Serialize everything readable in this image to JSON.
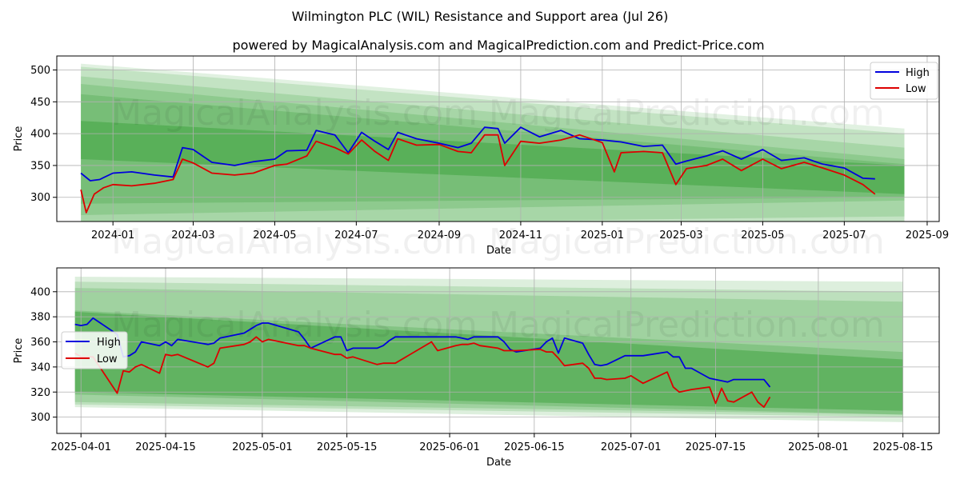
{
  "title": "Wilmington PLC (WIL) Resistance and Support area (Jul 26)",
  "subtitle": "powered by MagicalAnalysis.com and MagicalPrediction.com and Predict-Price.com",
  "watermark": "MagicalAnalysis.com    MagicalPrediction.com",
  "colors": {
    "high": "#0000dd",
    "low": "#dd0000",
    "band": "#2e9a2e"
  },
  "chart_data": [
    {
      "type": "line",
      "xlabel": "Date",
      "ylabel": "Price",
      "legend": "top-right",
      "grid": true,
      "xlim": [
        "2023-11-20",
        "2025-09-10"
      ],
      "ylim": [
        262,
        522
      ],
      "x_ticks": [
        "2024-01",
        "2024-03",
        "2024-05",
        "2024-07",
        "2024-09",
        "2024-11",
        "2025-01",
        "2025-03",
        "2025-05",
        "2025-07",
        "2025-09"
      ],
      "y_ticks": [
        300,
        350,
        400,
        450,
        500
      ],
      "series": [
        {
          "name": "High",
          "x": [
            "2023-12-08",
            "2023-12-15",
            "2023-12-22",
            "2024-01-01",
            "2024-01-15",
            "2024-02-01",
            "2024-02-15",
            "2024-02-22",
            "2024-03-01",
            "2024-03-15",
            "2024-04-01",
            "2024-04-15",
            "2024-05-01",
            "2024-05-10",
            "2024-05-25",
            "2024-06-01",
            "2024-06-15",
            "2024-06-25",
            "2024-07-05",
            "2024-07-15",
            "2024-07-25",
            "2024-08-01",
            "2024-08-15",
            "2024-09-01",
            "2024-09-15",
            "2024-09-25",
            "2024-10-05",
            "2024-10-15",
            "2024-10-20",
            "2024-11-01",
            "2024-11-15",
            "2024-12-01",
            "2024-12-15",
            "2025-01-01",
            "2025-01-15",
            "2025-02-01",
            "2025-02-15",
            "2025-02-25",
            "2025-03-05",
            "2025-03-20",
            "2025-04-01",
            "2025-04-15",
            "2025-05-01",
            "2025-05-15",
            "2025-06-01",
            "2025-06-15",
            "2025-07-01",
            "2025-07-15",
            "2025-07-24"
          ],
          "values": [
            338,
            326,
            328,
            338,
            340,
            335,
            332,
            378,
            375,
            355,
            350,
            356,
            360,
            373,
            374,
            405,
            398,
            370,
            402,
            388,
            375,
            402,
            392,
            385,
            378,
            385,
            410,
            408,
            385,
            410,
            395,
            405,
            392,
            390,
            387,
            380,
            382,
            352,
            357,
            365,
            373,
            360,
            375,
            358,
            362,
            352,
            346,
            330,
            329
          ]
        },
        {
          "name": "Low",
          "x": [
            "2023-12-08",
            "2023-12-12",
            "2023-12-18",
            "2023-12-25",
            "2024-01-01",
            "2024-01-15",
            "2024-02-01",
            "2024-02-15",
            "2024-02-22",
            "2024-03-01",
            "2024-03-15",
            "2024-04-01",
            "2024-04-15",
            "2024-05-01",
            "2024-05-10",
            "2024-05-25",
            "2024-06-01",
            "2024-06-15",
            "2024-06-25",
            "2024-07-05",
            "2024-07-15",
            "2024-07-25",
            "2024-08-01",
            "2024-08-15",
            "2024-09-01",
            "2024-09-15",
            "2024-09-25",
            "2024-10-05",
            "2024-10-15",
            "2024-10-20",
            "2024-11-01",
            "2024-11-15",
            "2024-12-01",
            "2024-12-15",
            "2025-01-01",
            "2025-01-10",
            "2025-01-15",
            "2025-02-01",
            "2025-02-15",
            "2025-02-25",
            "2025-03-05",
            "2025-03-20",
            "2025-04-01",
            "2025-04-15",
            "2025-05-01",
            "2025-05-15",
            "2025-06-01",
            "2025-06-15",
            "2025-07-01",
            "2025-07-15",
            "2025-07-24"
          ],
          "values": [
            312,
            276,
            305,
            315,
            320,
            318,
            322,
            328,
            360,
            354,
            338,
            335,
            338,
            350,
            352,
            365,
            388,
            378,
            368,
            390,
            372,
            358,
            392,
            382,
            383,
            372,
            370,
            398,
            398,
            350,
            388,
            385,
            390,
            398,
            386,
            340,
            370,
            372,
            370,
            320,
            345,
            350,
            360,
            342,
            360,
            345,
            355,
            346,
            335,
            320,
            305
          ]
        }
      ],
      "bands": [
        {
          "x": [
            "2023-12-08",
            "2025-08-15"
          ],
          "upper": [
            510,
            408
          ],
          "lower": [
            235,
            238
          ]
        },
        {
          "x": [
            "2023-12-08",
            "2025-08-15"
          ],
          "upper": [
            505,
            400
          ],
          "lower": [
            240,
            242
          ]
        },
        {
          "x": [
            "2023-12-08",
            "2025-08-15"
          ],
          "upper": [
            490,
            378
          ],
          "lower": [
            255,
            270
          ]
        },
        {
          "x": [
            "2023-12-08",
            "2025-08-15"
          ],
          "upper": [
            478,
            360
          ],
          "lower": [
            272,
            295
          ]
        },
        {
          "x": [
            "2023-12-08",
            "2025-08-15"
          ],
          "upper": [
            462,
            352
          ],
          "lower": [
            290,
            300
          ]
        },
        {
          "x": [
            "2023-12-08",
            "2025-08-15"
          ],
          "upper": [
            420,
            350
          ],
          "lower": [
            360,
            305
          ]
        }
      ]
    },
    {
      "type": "line",
      "xlabel": "Date",
      "ylabel": "Price",
      "legend": "center-left",
      "grid": true,
      "xlim": [
        "2025-03-28",
        "2025-08-21"
      ],
      "ylim": [
        287,
        419
      ],
      "x_ticks": [
        "2025-04-01",
        "2025-04-15",
        "2025-05-01",
        "2025-05-15",
        "2025-06-01",
        "2025-06-15",
        "2025-07-01",
        "2025-07-15",
        "2025-08-01",
        "2025-08-15"
      ],
      "y_ticks": [
        300,
        320,
        340,
        360,
        380,
        400
      ],
      "series": [
        {
          "name": "High",
          "x": [
            "2025-03-31",
            "2025-04-01",
            "2025-04-02",
            "2025-04-03",
            "2025-04-07",
            "2025-04-08",
            "2025-04-09",
            "2025-04-10",
            "2025-04-11",
            "2025-04-14",
            "2025-04-15",
            "2025-04-16",
            "2025-04-17",
            "2025-04-22",
            "2025-04-23",
            "2025-04-24",
            "2025-04-28",
            "2025-04-29",
            "2025-04-30",
            "2025-05-01",
            "2025-05-02",
            "2025-05-07",
            "2025-05-08",
            "2025-05-09",
            "2025-05-13",
            "2025-05-14",
            "2025-05-15",
            "2025-05-16",
            "2025-05-20",
            "2025-05-21",
            "2025-05-22",
            "2025-05-23",
            "2025-05-29",
            "2025-05-30",
            "2025-06-02",
            "2025-06-03",
            "2025-06-04",
            "2025-06-05",
            "2025-06-06",
            "2025-06-09",
            "2025-06-10",
            "2025-06-11",
            "2025-06-12",
            "2025-06-16",
            "2025-06-17",
            "2025-06-18",
            "2025-06-19",
            "2025-06-20",
            "2025-06-23",
            "2025-06-24",
            "2025-06-25",
            "2025-06-26",
            "2025-06-27",
            "2025-06-30",
            "2025-07-01",
            "2025-07-02",
            "2025-07-03",
            "2025-07-07",
            "2025-07-08",
            "2025-07-09",
            "2025-07-10",
            "2025-07-11",
            "2025-07-14",
            "2025-07-15",
            "2025-07-16",
            "2025-07-17",
            "2025-07-18",
            "2025-07-21",
            "2025-07-22",
            "2025-07-23",
            "2025-07-24"
          ],
          "values": [
            374,
            373,
            374,
            379,
            366,
            348,
            349,
            352,
            360,
            357,
            360,
            357,
            362,
            358,
            359,
            363,
            367,
            370,
            373,
            375,
            375,
            368,
            362,
            355,
            364,
            364,
            353,
            355,
            355,
            357,
            361,
            364,
            364,
            364,
            364,
            363,
            362,
            364,
            364,
            364,
            360,
            354,
            352,
            355,
            360,
            363,
            351,
            363,
            359,
            350,
            342,
            341,
            342,
            349,
            349,
            349,
            349,
            352,
            348,
            348,
            339,
            339,
            331,
            330,
            329,
            328,
            330,
            330,
            330,
            330,
            324
          ]
        },
        {
          "name": "Low",
          "x": [
            "2025-03-31",
            "2025-04-01",
            "2025-04-02",
            "2025-04-03",
            "2025-04-07",
            "2025-04-08",
            "2025-04-09",
            "2025-04-10",
            "2025-04-11",
            "2025-04-14",
            "2025-04-15",
            "2025-04-16",
            "2025-04-17",
            "2025-04-22",
            "2025-04-23",
            "2025-04-24",
            "2025-04-28",
            "2025-04-29",
            "2025-04-30",
            "2025-05-01",
            "2025-05-02",
            "2025-05-07",
            "2025-05-08",
            "2025-05-09",
            "2025-05-13",
            "2025-05-14",
            "2025-05-15",
            "2025-05-16",
            "2025-05-20",
            "2025-05-21",
            "2025-05-22",
            "2025-05-23",
            "2025-05-29",
            "2025-05-30",
            "2025-06-02",
            "2025-06-03",
            "2025-06-04",
            "2025-06-05",
            "2025-06-06",
            "2025-06-09",
            "2025-06-10",
            "2025-06-11",
            "2025-06-12",
            "2025-06-16",
            "2025-06-17",
            "2025-06-18",
            "2025-06-19",
            "2025-06-20",
            "2025-06-23",
            "2025-06-24",
            "2025-06-25",
            "2025-06-26",
            "2025-06-27",
            "2025-06-30",
            "2025-07-01",
            "2025-07-02",
            "2025-07-03",
            "2025-07-07",
            "2025-07-08",
            "2025-07-09",
            "2025-07-10",
            "2025-07-11",
            "2025-07-14",
            "2025-07-15",
            "2025-07-16",
            "2025-07-17",
            "2025-07-18",
            "2025-07-21",
            "2025-07-22",
            "2025-07-23",
            "2025-07-24"
          ],
          "values": [
            351,
            348,
            348,
            348,
            319,
            337,
            336,
            340,
            342,
            335,
            350,
            349,
            350,
            340,
            343,
            355,
            358,
            360,
            364,
            360,
            362,
            357,
            357,
            355,
            350,
            350,
            347,
            348,
            342,
            343,
            343,
            343,
            360,
            353,
            357,
            358,
            358,
            359,
            357,
            355,
            353,
            353,
            353,
            354,
            352,
            352,
            347,
            341,
            343,
            339,
            331,
            331,
            330,
            331,
            333,
            330,
            327,
            336,
            324,
            320,
            321,
            322,
            324,
            311,
            323,
            313,
            312,
            320,
            312,
            308,
            316
          ]
        }
      ],
      "bands": [
        {
          "x": [
            "2025-03-31",
            "2025-08-15"
          ],
          "upper": [
            412,
            408
          ],
          "lower": [
            308,
            296
          ]
        },
        {
          "x": [
            "2025-03-31",
            "2025-08-15"
          ],
          "upper": [
            408,
            400
          ],
          "lower": [
            310,
            300
          ]
        },
        {
          "x": [
            "2025-03-31",
            "2025-08-15"
          ],
          "upper": [
            403,
            392
          ],
          "lower": [
            312,
            302
          ]
        },
        {
          "x": [
            "2025-03-31",
            "2025-08-15"
          ],
          "upper": [
            385,
            352
          ],
          "lower": [
            318,
            302
          ]
        },
        {
          "x": [
            "2025-03-31",
            "2025-08-15"
          ],
          "upper": [
            384,
            346
          ],
          "lower": [
            320,
            305
          ]
        }
      ]
    }
  ]
}
